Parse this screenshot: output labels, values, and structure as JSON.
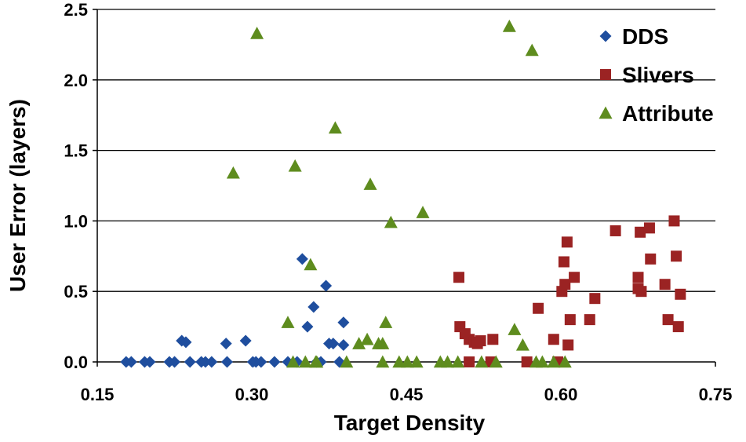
{
  "chart_data": {
    "type": "scatter",
    "title": "",
    "xlabel": "Target Density",
    "ylabel": "User Error (layers)",
    "xlim": [
      0.15,
      0.75
    ],
    "ylim": [
      0.0,
      2.5
    ],
    "x_ticks": [
      "0.15",
      "0.30",
      "0.45",
      "0.60",
      "0.75"
    ],
    "x_tick_values": [
      0.15,
      0.3,
      0.45,
      0.6,
      0.75
    ],
    "y_ticks": [
      "0.0",
      "0.5",
      "1.0",
      "1.5",
      "2.0",
      "2.5"
    ],
    "y_tick_values": [
      0.0,
      0.5,
      1.0,
      1.5,
      2.0,
      2.5
    ],
    "grid": "horizontal",
    "legend_position": "top-right",
    "series": [
      {
        "name": "DDS",
        "marker": "diamond",
        "color": "#1F4E9E",
        "points": [
          [
            0.178,
            0.0
          ],
          [
            0.183,
            0.0
          ],
          [
            0.196,
            0.0
          ],
          [
            0.201,
            0.0
          ],
          [
            0.22,
            0.0
          ],
          [
            0.225,
            0.0
          ],
          [
            0.232,
            0.15
          ],
          [
            0.236,
            0.14
          ],
          [
            0.24,
            0.0
          ],
          [
            0.251,
            0.0
          ],
          [
            0.255,
            0.0
          ],
          [
            0.261,
            0.0
          ],
          [
            0.275,
            0.13
          ],
          [
            0.276,
            0.0
          ],
          [
            0.294,
            0.15
          ],
          [
            0.301,
            0.0
          ],
          [
            0.304,
            0.0
          ],
          [
            0.309,
            0.0
          ],
          [
            0.322,
            0.0
          ],
          [
            0.335,
            0.0
          ],
          [
            0.344,
            0.0
          ],
          [
            0.349,
            0.73
          ],
          [
            0.354,
            0.25
          ],
          [
            0.36,
            0.39
          ],
          [
            0.363,
            0.0
          ],
          [
            0.367,
            0.0
          ],
          [
            0.372,
            0.54
          ],
          [
            0.375,
            0.13
          ],
          [
            0.379,
            0.13
          ],
          [
            0.385,
            0.0
          ],
          [
            0.389,
            0.28
          ],
          [
            0.389,
            0.12
          ]
        ]
      },
      {
        "name": "Slivers",
        "marker": "square",
        "color": "#9B2323",
        "points": [
          [
            0.501,
            0.6
          ],
          [
            0.502,
            0.25
          ],
          [
            0.507,
            0.2
          ],
          [
            0.511,
            0.16
          ],
          [
            0.511,
            0.0
          ],
          [
            0.516,
            0.14
          ],
          [
            0.519,
            0.13
          ],
          [
            0.522,
            0.15
          ],
          [
            0.532,
            0.0
          ],
          [
            0.534,
            0.16
          ],
          [
            0.567,
            0.0
          ],
          [
            0.578,
            0.38
          ],
          [
            0.593,
            0.16
          ],
          [
            0.597,
            0.0
          ],
          [
            0.601,
            0.5
          ],
          [
            0.603,
            0.71
          ],
          [
            0.604,
            0.55
          ],
          [
            0.606,
            0.85
          ],
          [
            0.607,
            0.12
          ],
          [
            0.609,
            0.3
          ],
          [
            0.613,
            0.6
          ],
          [
            0.628,
            0.3
          ],
          [
            0.633,
            0.45
          ],
          [
            0.653,
            0.93
          ],
          [
            0.675,
            0.6
          ],
          [
            0.675,
            0.52
          ],
          [
            0.677,
            0.92
          ],
          [
            0.678,
            0.5
          ],
          [
            0.686,
            0.95
          ],
          [
            0.687,
            0.73
          ],
          [
            0.701,
            0.55
          ],
          [
            0.704,
            0.3
          ],
          [
            0.71,
            1.0
          ],
          [
            0.712,
            0.75
          ],
          [
            0.714,
            0.25
          ],
          [
            0.716,
            0.48
          ]
        ]
      },
      {
        "name": "Attribute",
        "marker": "triangle",
        "color": "#5E8C1E",
        "points": [
          [
            0.282,
            1.34
          ],
          [
            0.305,
            2.33
          ],
          [
            0.335,
            0.28
          ],
          [
            0.34,
            0.0
          ],
          [
            0.342,
            1.39
          ],
          [
            0.352,
            0.0
          ],
          [
            0.357,
            0.69
          ],
          [
            0.362,
            0.0
          ],
          [
            0.363,
            0.0
          ],
          [
            0.381,
            1.66
          ],
          [
            0.392,
            0.0
          ],
          [
            0.404,
            0.13
          ],
          [
            0.412,
            0.16
          ],
          [
            0.415,
            1.26
          ],
          [
            0.423,
            0.13
          ],
          [
            0.427,
            0.13
          ],
          [
            0.427,
            0.0
          ],
          [
            0.43,
            0.28
          ],
          [
            0.435,
            0.99
          ],
          [
            0.443,
            0.0
          ],
          [
            0.451,
            0.0
          ],
          [
            0.46,
            0.0
          ],
          [
            0.466,
            1.06
          ],
          [
            0.483,
            0.0
          ],
          [
            0.49,
            0.0
          ],
          [
            0.5,
            0.0
          ],
          [
            0.523,
            0.0
          ],
          [
            0.537,
            0.0
          ],
          [
            0.55,
            2.38
          ],
          [
            0.555,
            0.23
          ],
          [
            0.563,
            0.12
          ],
          [
            0.572,
            2.21
          ],
          [
            0.576,
            0.0
          ],
          [
            0.582,
            0.0
          ],
          [
            0.593,
            0.0
          ],
          [
            0.604,
            0.0
          ]
        ]
      }
    ]
  }
}
